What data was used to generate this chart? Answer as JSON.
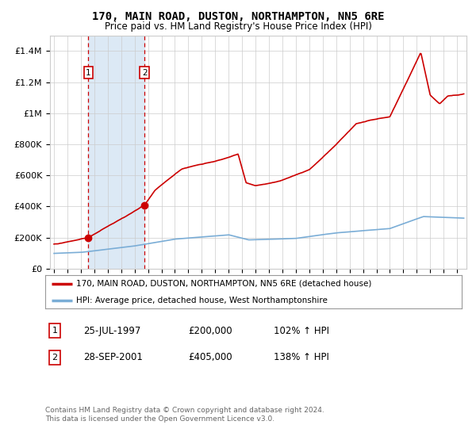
{
  "title": "170, MAIN ROAD, DUSTON, NORTHAMPTON, NN5 6RE",
  "subtitle": "Price paid vs. HM Land Registry's House Price Index (HPI)",
  "legend_line1": "170, MAIN ROAD, DUSTON, NORTHAMPTON, NN5 6RE (detached house)",
  "legend_line2": "HPI: Average price, detached house, West Northamptonshire",
  "annotation1_label": "1",
  "annotation1_date": "25-JUL-1997",
  "annotation1_price": "£200,000",
  "annotation1_hpi": "102% ↑ HPI",
  "annotation2_label": "2",
  "annotation2_date": "28-SEP-2001",
  "annotation2_price": "£405,000",
  "annotation2_hpi": "138% ↑ HPI",
  "footnote1": "Contains HM Land Registry data © Crown copyright and database right 2024.",
  "footnote2": "This data is licensed under the Open Government Licence v3.0.",
  "property_color": "#cc0000",
  "hpi_color": "#7aadd6",
  "background_color": "#ffffff",
  "grid_color": "#cccccc",
  "highlight_color": "#dce9f5",
  "ylim": [
    0,
    1500000
  ],
  "sale1_year": 1997.56,
  "sale1_price": 200000,
  "sale2_year": 2001.75,
  "sale2_price": 405000
}
